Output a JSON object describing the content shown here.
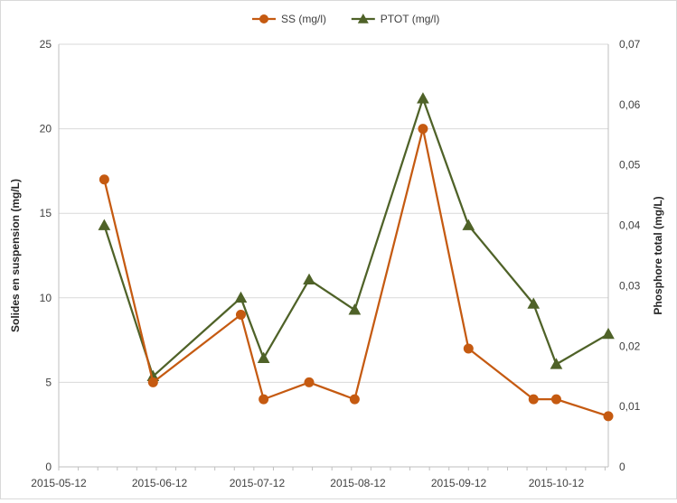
{
  "chart_data": {
    "type": "line",
    "title": "",
    "xlabel": "",
    "ylabel": "Solides en suspension (mg/L)",
    "y2label": "Phosphore total (mg/L)",
    "grid": true,
    "legend_position": "top",
    "x_ticks": [
      "2015-05-12",
      "2015-06-12",
      "2015-07-12",
      "2015-08-12",
      "2015-09-12",
      "2015-10-12"
    ],
    "xlim": [
      "2015-05-12",
      "2015-10-28"
    ],
    "y_ticks": [
      "0",
      "5",
      "10",
      "15",
      "20",
      "25"
    ],
    "ylim": [
      0,
      25
    ],
    "y2_ticks": [
      "0",
      "0,01",
      "0,02",
      "0,03",
      "0,04",
      "0,05",
      "0,06",
      "0,07"
    ],
    "y2lim": [
      0,
      0.07
    ],
    "series": [
      {
        "name": "SS (mg/l)",
        "axis": "left",
        "color": "#C55A11",
        "marker": "circle",
        "points": [
          {
            "x": "2015-05-26",
            "y": 17
          },
          {
            "x": "2015-06-10",
            "y": 5
          },
          {
            "x": "2015-07-07",
            "y": 9
          },
          {
            "x": "2015-07-14",
            "y": 4
          },
          {
            "x": "2015-07-28",
            "y": 5
          },
          {
            "x": "2015-08-11",
            "y": 4
          },
          {
            "x": "2015-09-01",
            "y": 20
          },
          {
            "x": "2015-09-15",
            "y": 7
          },
          {
            "x": "2015-10-05",
            "y": 4
          },
          {
            "x": "2015-10-12",
            "y": 4
          },
          {
            "x": "2015-10-28",
            "y": 3
          }
        ]
      },
      {
        "name": "PTOT (mg/l)",
        "axis": "right",
        "color": "#4F6228",
        "marker": "triangle",
        "points": [
          {
            "x": "2015-05-26",
            "y": 0.04
          },
          {
            "x": "2015-06-10",
            "y": 0.015
          },
          {
            "x": "2015-07-07",
            "y": 0.028
          },
          {
            "x": "2015-07-14",
            "y": 0.018
          },
          {
            "x": "2015-07-28",
            "y": 0.031
          },
          {
            "x": "2015-08-11",
            "y": 0.026
          },
          {
            "x": "2015-09-01",
            "y": 0.061
          },
          {
            "x": "2015-09-15",
            "y": 0.04
          },
          {
            "x": "2015-10-05",
            "y": 0.027
          },
          {
            "x": "2015-10-12",
            "y": 0.017
          },
          {
            "x": "2015-10-28",
            "y": 0.022
          }
        ]
      }
    ]
  }
}
